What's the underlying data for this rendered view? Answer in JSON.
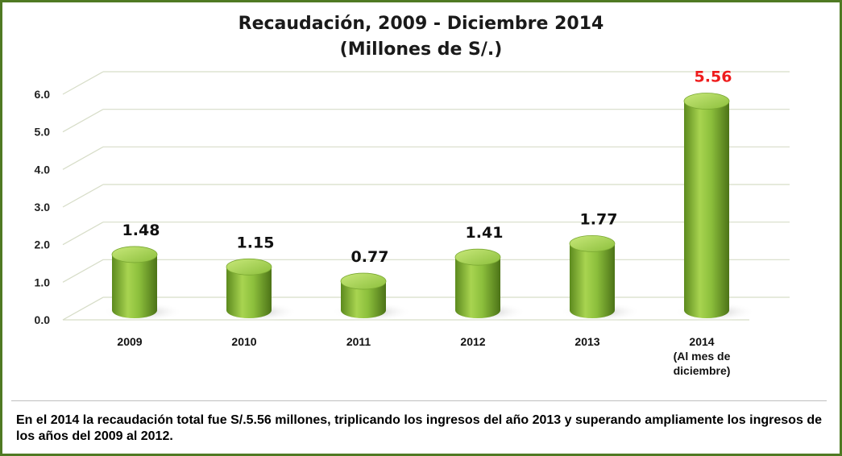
{
  "chart_data": {
    "type": "bar",
    "title_line1": "Recaudación, 2009 - Diciembre 2014",
    "title_line2": "(Millones de S/.)",
    "categories": [
      [
        "2009"
      ],
      [
        "2010"
      ],
      [
        "2011"
      ],
      [
        "2012"
      ],
      [
        "2013"
      ],
      [
        "2014",
        "(Al mes de",
        "diciembre)"
      ]
    ],
    "values": [
      1.48,
      1.15,
      0.77,
      1.41,
      1.77,
      5.56
    ],
    "data_labels": [
      "1.48",
      "1.15",
      "0.77",
      "1.41",
      "1.77",
      "5.56"
    ],
    "highlight_index": 5,
    "ylim": [
      0,
      6
    ],
    "y_ticks": [
      "0.0",
      "1.0",
      "2.0",
      "3.0",
      "4.0",
      "5.0",
      "6.0"
    ],
    "grid": true,
    "legend": "none",
    "colors": {
      "bar_light": "#b7dd5e",
      "bar_mid": "#8cbf3c",
      "bar_dark": "#557f1c",
      "highlight_label": "#ee1c1c",
      "grid": "#d7ddc8",
      "border": "#4f7a23"
    }
  },
  "footnote": "En el 2014 la recaudación total fue S/.5.56 millones, triplicando los ingresos del año 2013 y superando ampliamente los ingresos de los años del 2009 al 2012."
}
